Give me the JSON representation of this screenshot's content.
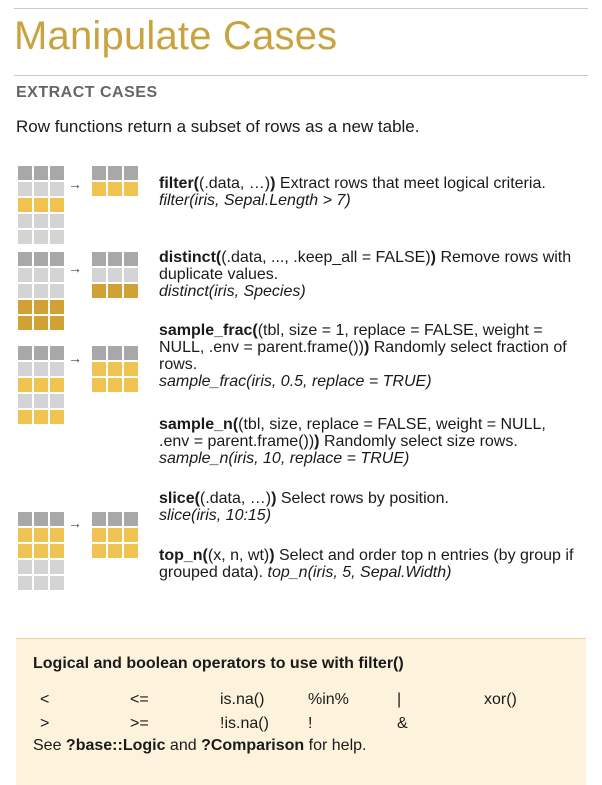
{
  "page": {
    "title": "Manipulate Cases",
    "subhead": "EXTRACT CASES",
    "intro": "Row functions return a subset of rows as a new table."
  },
  "functions": {
    "filter": {
      "name": "filter",
      "sig": "(.data, …)",
      "desc": " Extract rows that meet logical criteria. ",
      "example": "filter(iris, Sepal.Length > 7)"
    },
    "distinct": {
      "name": "distinct",
      "sig": "(.data, ..., .keep_all = FALSE)",
      "desc": " Remove rows with duplicate values. ",
      "example": "distinct(iris, Species)"
    },
    "sample_frac": {
      "name": "sample_frac",
      "sig": "(tbl, size = 1, replace = FALSE, weight = NULL, .env = parent.frame())",
      "desc": " Randomly select fraction of rows. ",
      "example": "sample_frac(iris, 0.5, replace = TRUE)"
    },
    "sample_n": {
      "name": "sample_n",
      "sig": "(tbl, size, replace = FALSE, weight = NULL, .env = parent.frame())",
      "desc": " Randomly select size rows. ",
      "example": "sample_n(iris, 10, replace = TRUE)"
    },
    "slice": {
      "name": "slice",
      "sig": "(.data, …)",
      "desc": " Select rows by position. ",
      "example": "slice(iris, 10:15)"
    },
    "top_n": {
      "name": "top_n",
      "sig": "(x, n, wt)",
      "desc": " Select and order top n entries (by group if grouped data). ",
      "example": "top_n(iris, 5, Sepal.Width)"
    }
  },
  "operators_box": {
    "title": "Logical and boolean operators to use with filter()",
    "row1": [
      "<",
      "<=",
      "is.na()",
      "%in%",
      "|",
      "xor()"
    ],
    "row2": [
      ">",
      ">=",
      "!is.na()",
      "!",
      "&"
    ],
    "help_prefix": "See ",
    "help_logic": "?base::Logic",
    "help_mid": " and ",
    "help_comparison": "?Comparison",
    "help_suffix": " for help."
  },
  "colors": {
    "accent": "#c9a340",
    "highlight": "#f0c24f",
    "highlight_dark": "#d1a136",
    "grid_light": "#d4d4d4",
    "grid_dark": "#a8a8a8",
    "box_bg": "#fdf3dc"
  },
  "icons": {
    "arrow": "arrow-right-icon",
    "table": "table-grid-icon"
  }
}
